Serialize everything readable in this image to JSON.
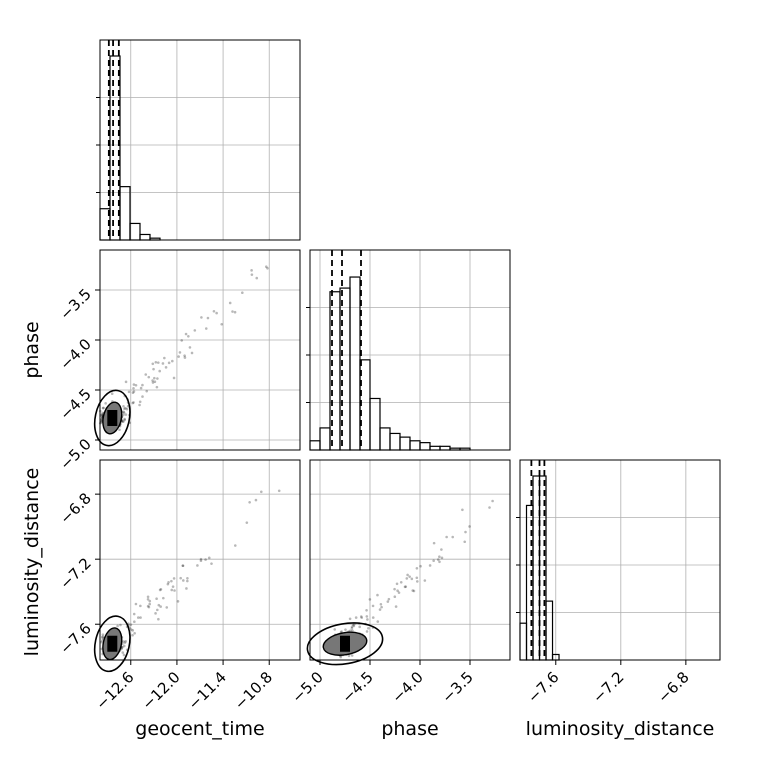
{
  "chart_data": {
    "type": "corner",
    "parameters": [
      "geocent_time",
      "phase",
      "luminosity_distance"
    ],
    "axis_labels": {
      "x": [
        "geocent_time",
        "phase",
        "luminosity_distance"
      ],
      "y": [
        "phase",
        "luminosity_distance"
      ]
    },
    "ranges": {
      "geocent_time": [
        -13.0,
        -10.4
      ],
      "phase": [
        -5.1,
        -3.1
      ],
      "luminosity_distance": [
        -7.82,
        -6.59
      ]
    },
    "ticks": {
      "geocent_time": {
        "values": [
          -12.6,
          -12.0,
          -11.4,
          -10.8
        ],
        "labels": [
          "−12.6",
          "−12.0",
          "−11.4",
          "−10.8"
        ]
      },
      "phase": {
        "values": [
          -5.0,
          -4.5,
          -4.0,
          -3.5
        ],
        "labels": [
          "−5.0",
          "−4.5",
          "−4.0",
          "−3.5"
        ]
      },
      "luminosity_distance": {
        "values": [
          -7.6,
          -7.2,
          -6.8
        ],
        "labels": [
          "−7.6",
          "−7.2",
          "−6.8"
        ]
      }
    },
    "quantile_lines": {
      "geocent_time": [
        -12.885,
        -12.83,
        -12.755
      ],
      "phase": [
        -4.88,
        -4.78,
        -4.59
      ],
      "luminosity_distance": [
        -7.75,
        -7.7,
        -7.67
      ]
    },
    "histograms": {
      "geocent_time": {
        "edges": [
          -13.0,
          -12.87,
          -12.74,
          -12.61,
          -12.48,
          -12.35,
          -12.22,
          -12.09
        ],
        "counts": [
          0.17,
          1.0,
          0.29,
          0.09,
          0.03,
          0.01,
          0.0
        ]
      },
      "phase": {
        "edges": [
          -5.1,
          -5.0,
          -4.9,
          -4.8,
          -4.7,
          -4.6,
          -4.5,
          -4.4,
          -4.3,
          -4.2,
          -4.1,
          -4.0,
          -3.9,
          -3.8,
          -3.7,
          -3.6,
          -3.5,
          -3.4
        ],
        "counts": [
          0.05,
          0.12,
          0.86,
          0.88,
          0.94,
          0.49,
          0.28,
          0.12,
          0.09,
          0.07,
          0.05,
          0.04,
          0.02,
          0.02,
          0.01,
          0.01,
          0.0
        ]
      },
      "luminosity_distance": {
        "edges": [
          -7.82,
          -7.78,
          -7.74,
          -7.7,
          -7.66,
          -7.62,
          -7.58,
          -7.54
        ],
        "counts": [
          0.2,
          0.84,
          1.0,
          1.0,
          0.32,
          0.03,
          0.0
        ]
      }
    },
    "contours": {
      "geocent_time__phase": {
        "center": [
          -12.84,
          -4.78
        ],
        "levels": [
          0.5,
          0.9
        ]
      },
      "geocent_time__luminosity_distance": {
        "center": [
          -12.84,
          -7.72
        ],
        "levels": [
          0.5,
          0.9
        ]
      },
      "phase__luminosity_distance": {
        "center": [
          -4.75,
          -7.72
        ],
        "levels": [
          0.5,
          0.9
        ]
      }
    },
    "grid": true
  }
}
